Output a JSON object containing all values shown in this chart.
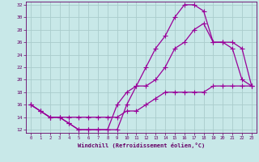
{
  "xlabel": "Windchill (Refroidissement éolien,°C)",
  "bg_color": "#c8e8e8",
  "line_color": "#990099",
  "grid_color": "#aacccc",
  "xlim": [
    -0.5,
    23.5
  ],
  "ylim": [
    11.5,
    32.5
  ],
  "xticks": [
    0,
    1,
    2,
    3,
    4,
    5,
    6,
    7,
    8,
    9,
    10,
    11,
    12,
    13,
    14,
    15,
    16,
    17,
    18,
    19,
    20,
    21,
    22,
    23
  ],
  "yticks": [
    12,
    14,
    16,
    18,
    20,
    22,
    24,
    26,
    28,
    30,
    32
  ],
  "line1_x": [
    0,
    1,
    2,
    3,
    4,
    5,
    6,
    7,
    8,
    9,
    10,
    11,
    12,
    13,
    14,
    15,
    16,
    17,
    18,
    19,
    20,
    21,
    22,
    23
  ],
  "line1_y": [
    16,
    15,
    14,
    14,
    13,
    12,
    12,
    12,
    12,
    12,
    16,
    19,
    22,
    25,
    27,
    30,
    32,
    32,
    31,
    26,
    26,
    25,
    20,
    19
  ],
  "line2_x": [
    0,
    1,
    2,
    3,
    4,
    5,
    6,
    7,
    8,
    9,
    10,
    11,
    12,
    13,
    14,
    15,
    16,
    17,
    18,
    19,
    20,
    21,
    22,
    23
  ],
  "line2_y": [
    16,
    15,
    14,
    14,
    13,
    12,
    12,
    12,
    12,
    16,
    18,
    19,
    19,
    20,
    22,
    25,
    26,
    28,
    29,
    26,
    26,
    26,
    25,
    19
  ],
  "line3_x": [
    0,
    1,
    2,
    3,
    4,
    5,
    6,
    7,
    8,
    9,
    10,
    11,
    12,
    13,
    14,
    15,
    16,
    17,
    18,
    19,
    20,
    21,
    22,
    23
  ],
  "line3_y": [
    16,
    15,
    14,
    14,
    14,
    14,
    14,
    14,
    14,
    14,
    15,
    15,
    16,
    17,
    18,
    18,
    18,
    18,
    18,
    19,
    19,
    19,
    19,
    19
  ]
}
